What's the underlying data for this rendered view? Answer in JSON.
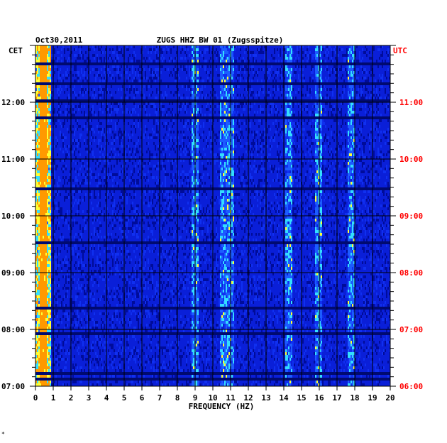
{
  "chart_data": {
    "type": "heatmap",
    "title": "ZUGS HHZ BW 01 (Zugsspitze)",
    "date": "Oct30,2011",
    "left_timezone": "CET",
    "right_timezone": "UTC",
    "xlabel": "FREQUENCY (HZ)",
    "xlim": [
      0,
      20
    ],
    "x_ticks": [
      "0",
      "1",
      "2",
      "3",
      "4",
      "5",
      "6",
      "7",
      "8",
      "9",
      "10",
      "11",
      "12",
      "13",
      "14",
      "15",
      "16",
      "17",
      "18",
      "19",
      "20"
    ],
    "cet_ticks": [
      "12:00",
      "11:00",
      "10:00",
      "09:00",
      "08:00",
      "07:00"
    ],
    "utc_ticks": [
      "11:00",
      "10:00",
      "09:00",
      "08:00",
      "07:00",
      "06:00"
    ],
    "time_range_cet": [
      "07:00",
      "13:00"
    ],
    "time_range_utc": [
      "06:00",
      "12:00"
    ],
    "colormap": [
      "#000080",
      "#0000ff",
      "#00ffff",
      "#ffff00",
      "#ff0000"
    ],
    "energy_bands_hz": [
      0.4,
      9.0,
      10.6,
      11.0,
      14.3,
      16.0,
      17.8
    ],
    "footer_mark": "*"
  },
  "colors": {
    "background": "#0a1fd8",
    "grid": "#000000",
    "cet_text": "#000000",
    "utc_text": "#ff0000"
  }
}
